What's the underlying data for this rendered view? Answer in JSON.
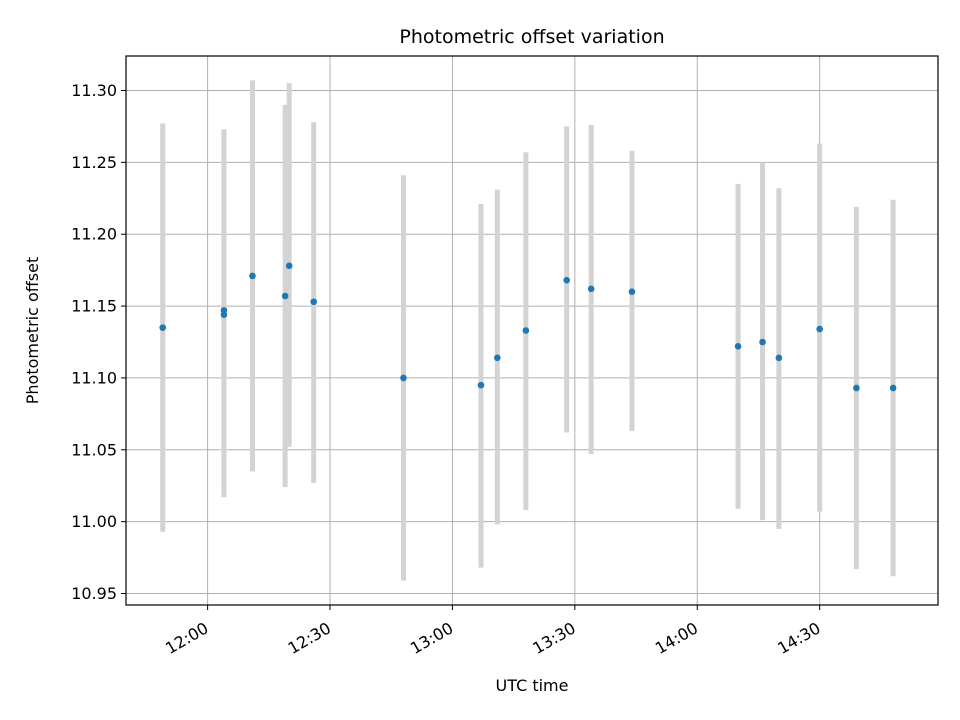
{
  "chart_data": {
    "type": "scatter",
    "title": "Photometric offset variation",
    "xlabel": "UTC time",
    "ylabel": "Photometric offset",
    "xlim": [
      "11:40",
      "14:59"
    ],
    "ylim": [
      10.942,
      11.324
    ],
    "x_ticks": [
      "12:00",
      "12:30",
      "13:00",
      "13:30",
      "14:00",
      "14:30"
    ],
    "y_ticks": [
      "10.95",
      "11.00",
      "11.05",
      "11.10",
      "11.15",
      "11.20",
      "11.25",
      "11.30"
    ],
    "grid": true,
    "marker_color": "#1f77b4",
    "errorbar_color": "#d3d3d3",
    "series": [
      {
        "points": [
          {
            "x": "11:49",
            "y": 11.135,
            "ymin": 10.993,
            "ymax": 11.277
          },
          {
            "x": "12:04",
            "y": 11.147,
            "ymin": 11.022,
            "ymax": 11.273
          },
          {
            "x": "12:04",
            "y": 11.144,
            "ymin": 11.017,
            "ymax": 11.271
          },
          {
            "x": "12:11",
            "y": 11.171,
            "ymin": 11.035,
            "ymax": 11.307
          },
          {
            "x": "12:19",
            "y": 11.157,
            "ymin": 11.024,
            "ymax": 11.29
          },
          {
            "x": "12:20",
            "y": 11.178,
            "ymin": 11.052,
            "ymax": 11.305
          },
          {
            "x": "12:26",
            "y": 11.153,
            "ymin": 11.027,
            "ymax": 11.278
          },
          {
            "x": "12:48",
            "y": 11.1,
            "ymin": 10.959,
            "ymax": 11.241
          },
          {
            "x": "13:07",
            "y": 11.095,
            "ymin": 10.968,
            "ymax": 11.221
          },
          {
            "x": "13:11",
            "y": 11.114,
            "ymin": 10.998,
            "ymax": 11.231
          },
          {
            "x": "13:18",
            "y": 11.133,
            "ymin": 11.008,
            "ymax": 11.257
          },
          {
            "x": "13:28",
            "y": 11.168,
            "ymin": 11.062,
            "ymax": 11.275
          },
          {
            "x": "13:34",
            "y": 11.162,
            "ymin": 11.047,
            "ymax": 11.276
          },
          {
            "x": "13:44",
            "y": 11.16,
            "ymin": 11.063,
            "ymax": 11.258
          },
          {
            "x": "14:10",
            "y": 11.122,
            "ymin": 11.009,
            "ymax": 11.235
          },
          {
            "x": "14:16",
            "y": 11.125,
            "ymin": 11.001,
            "ymax": 11.25
          },
          {
            "x": "14:20",
            "y": 11.114,
            "ymin": 10.995,
            "ymax": 11.232
          },
          {
            "x": "14:30",
            "y": 11.134,
            "ymin": 11.007,
            "ymax": 11.263
          },
          {
            "x": "14:39",
            "y": 11.093,
            "ymin": 10.967,
            "ymax": 11.219
          },
          {
            "x": "14:48",
            "y": 11.093,
            "ymin": 10.962,
            "ymax": 11.224
          }
        ]
      }
    ]
  }
}
